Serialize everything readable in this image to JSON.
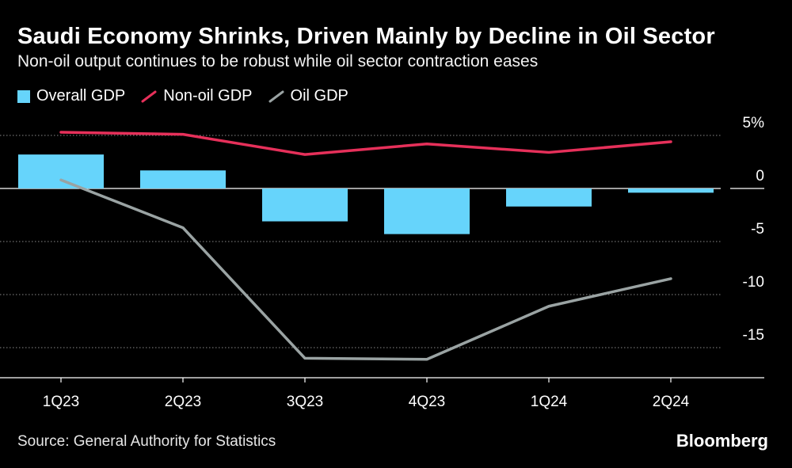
{
  "header": {
    "title": "Saudi Economy Shrinks, Driven Mainly by Decline in Oil Sector",
    "subtitle": "Non-oil output continues to be robust while oil sector contraction eases"
  },
  "legend": {
    "items": [
      {
        "label": "Overall GDP",
        "color": "#66d4fb"
      },
      {
        "label": "Non-oil GDP",
        "color": "#e6305a"
      },
      {
        "label": "Oil GDP",
        "color": "#9aa3a3"
      }
    ]
  },
  "footer": {
    "source": "Source: General Authority for Statistics",
    "brand": "Bloomberg"
  },
  "chart_data": {
    "type": "bar+line",
    "title": "Saudi Economy Shrinks, Driven Mainly by Decline in Oil Sector",
    "categories": [
      "1Q23",
      "2Q23",
      "3Q23",
      "4Q23",
      "1Q24",
      "2Q24"
    ],
    "y_ticks": [
      5,
      0,
      -5,
      -10,
      -15
    ],
    "y_tick_labels": [
      "5%",
      "0",
      "-5",
      "-10",
      "-15"
    ],
    "ylim": [
      -18,
      6
    ],
    "grid": true,
    "series": [
      {
        "name": "Overall GDP",
        "type": "bar",
        "color": "#66d4fb",
        "values": [
          3.2,
          1.7,
          -3.1,
          -4.3,
          -1.7,
          -0.4
        ]
      },
      {
        "name": "Non-oil GDP",
        "type": "line",
        "color": "#e6305a",
        "values": [
          5.3,
          5.1,
          3.2,
          4.2,
          3.4,
          4.4
        ]
      },
      {
        "name": "Oil GDP",
        "type": "line",
        "color": "#9aa3a3",
        "values": [
          0.8,
          -3.7,
          -16.0,
          -16.1,
          -11.1,
          -8.5
        ]
      }
    ]
  }
}
